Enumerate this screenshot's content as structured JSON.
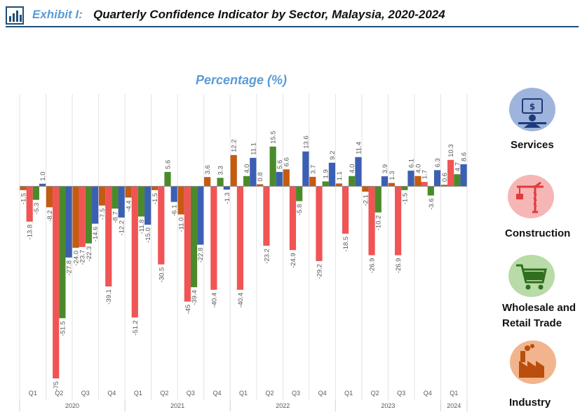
{
  "header": {
    "exhibit_label": "Exhibit  I:",
    "title": "Quarterly Confidence Indicator by Sector, Malaysia, 2020-2024"
  },
  "legend": [
    {
      "label": "Services",
      "icon": "services-icon",
      "color": "#3b5fb3",
      "icon_bg": "#9fb4dc"
    },
    {
      "label": "Construction",
      "icon": "construction-icon",
      "color": "#f05454",
      "icon_bg": "#f7b6b6"
    },
    {
      "label": "Wholesale and Retail Trade",
      "label_lines": [
        "Wholesale and",
        "Retail Trade"
      ],
      "icon": "cart-icon",
      "color": "#4b8a2a",
      "icon_bg": "#b9dba7"
    },
    {
      "label": "Industry",
      "icon": "factory-icon",
      "color": "#c55a11",
      "icon_bg": "#f2b48c"
    }
  ],
  "chart_data": {
    "type": "bar",
    "title": "Percentage (%)",
    "categories": [
      "Q1",
      "Q2",
      "Q3",
      "Q4",
      "Q1",
      "Q2",
      "Q3",
      "Q4",
      "Q1",
      "Q2",
      "Q3",
      "Q4",
      "Q1",
      "Q2",
      "Q3",
      "Q4",
      "Q1"
    ],
    "year_groups": [
      {
        "year": "2020",
        "quarters": 4
      },
      {
        "year": "2021",
        "quarters": 4
      },
      {
        "year": "2022",
        "quarters": 4
      },
      {
        "year": "2023",
        "quarters": 4
      },
      {
        "year": "2024",
        "quarters": 1
      }
    ],
    "ylim": [
      -78,
      36
    ],
    "grid": false,
    "series": [
      {
        "name": "Industry",
        "color": "#c55a11",
        "values": [
          -1.5,
          -8.2,
          -24.0,
          -7.5,
          -4.4,
          -1.5,
          -11.0,
          3.6,
          12.2,
          0.8,
          6.6,
          3.7,
          1.1,
          -2.1,
          1.3,
          4.0,
          0.6
        ],
        "labels": [
          "-1.5",
          "-8.2",
          "-24.0",
          "-7.5",
          "-4.4",
          "-1.5",
          "-11.0",
          "3.6",
          "12.2",
          "0.8",
          "6.6",
          "3.7",
          "1.1",
          "-2.1",
          "1.3",
          "4.0",
          "0.6"
        ]
      },
      {
        "name": "Construction",
        "color": "#f05454",
        "values": [
          -13.8,
          -75,
          -23.7,
          -39.1,
          -51.2,
          -30.5,
          -45,
          -40.4,
          -40.4,
          -23.2,
          -24.9,
          -29.2,
          -18.5,
          -26.9,
          -26.9,
          1.7,
          10.3
        ],
        "labels": [
          "-13.8",
          "-75",
          "-23.7",
          "-39.1",
          "-51.2",
          "-30.5",
          "-45",
          "-40.4",
          "-40.4",
          "-23.2",
          "-24.9",
          "-29.2",
          "-18.5",
          "-26.9",
          "-26.9",
          "1.7",
          "10.3"
        ]
      },
      {
        "name": "Wholesale and Retail Trade",
        "color": "#4b8a2a",
        "values": [
          -5.3,
          -51.5,
          -22.3,
          -8.7,
          -11.8,
          5.6,
          -39.4,
          3.3,
          4.0,
          15.5,
          -5.8,
          1.9,
          4.0,
          -10.2,
          -1.5,
          -3.6,
          4.7
        ],
        "labels": [
          "-5.3",
          "-51.5",
          "-22.3",
          "-8.7",
          "-11.8",
          "5.6",
          "-39.4",
          "3.3",
          "4.0",
          "15.5",
          "-5.8",
          "1.9",
          "4.0",
          "-10.2",
          "-1.5",
          "-3.6",
          "4.7"
        ]
      },
      {
        "name": "Services",
        "color": "#3b5fb3",
        "values": [
          1.0,
          -27.8,
          -14.6,
          -12.2,
          -15.0,
          -6.1,
          -22.8,
          -1.3,
          11.1,
          5.6,
          13.6,
          9.2,
          11.4,
          3.9,
          6.1,
          6.3,
          8.6
        ],
        "labels": [
          "1.0",
          "-27.8",
          "-14.6",
          "-12.2",
          "-15.0",
          "-6.1",
          "-22.8",
          "-1.3",
          "11.1",
          "5.6",
          "13.6",
          "9.2",
          "11.4",
          "3.9",
          "6.1",
          "6.3",
          "8.6"
        ]
      }
    ]
  }
}
